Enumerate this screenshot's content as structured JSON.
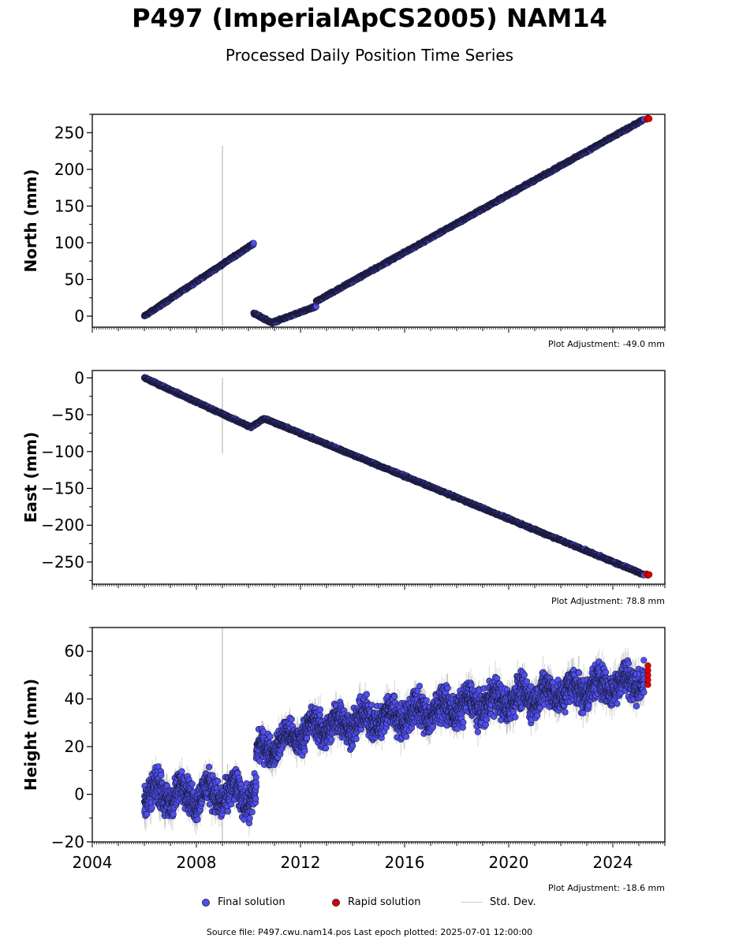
{
  "title": "P497 (ImperialApCS2005) NAM14",
  "subtitle": "Processed Daily Position Time Series",
  "chart_data": [
    {
      "type": "scatter",
      "ylabel": "North (mm)",
      "ylim": [
        -15,
        275
      ],
      "yticks": [
        0,
        50,
        100,
        150,
        200,
        250
      ],
      "xlim": [
        2004,
        2026
      ],
      "adjustment": "Plot Adjustment: -49.0 mm",
      "series": [
        {
          "role": "final",
          "segments": [
            {
              "x0": 2006.0,
              "x1": 2010.2,
              "y0": 0,
              "y1": 99
            },
            {
              "x0": 2010.2,
              "x1": 2010.9,
              "y0": 4,
              "y1": -9
            },
            {
              "x0": 2010.9,
              "x1": 2012.6,
              "y0": -9,
              "y1": 13
            },
            {
              "x0": 2012.6,
              "x1": 2025.2,
              "y0": 20,
              "y1": 268
            }
          ]
        },
        {
          "role": "rapid",
          "points": [
            [
              2025.3,
              268
            ],
            [
              2025.35,
              270
            ],
            [
              2025.4,
              269
            ]
          ]
        }
      ],
      "stddev_outlier": {
        "x": 2009.0,
        "y_low": -13,
        "y_high": 232
      }
    },
    {
      "type": "scatter",
      "ylabel": "East (mm)",
      "ylim": [
        -280,
        10
      ],
      "yticks": [
        0,
        -50,
        -100,
        -150,
        -200,
        -250
      ],
      "xlim": [
        2004,
        2026
      ],
      "adjustment": "Plot Adjustment: 78.8 mm",
      "series": [
        {
          "role": "final",
          "segments": [
            {
              "x0": 2006.0,
              "x1": 2010.1,
              "y0": 0,
              "y1": -67
            },
            {
              "x0": 2010.1,
              "x1": 2010.6,
              "y0": -67,
              "y1": -55
            },
            {
              "x0": 2010.6,
              "x1": 2025.2,
              "y0": -55,
              "y1": -267
            }
          ]
        },
        {
          "role": "rapid",
          "points": [
            [
              2025.3,
              -266
            ],
            [
              2025.35,
              -268
            ],
            [
              2025.4,
              -267
            ]
          ]
        }
      ],
      "stddev_outlier": {
        "x": 2009.0,
        "y_low": -103,
        "y_high": 0
      }
    },
    {
      "type": "scatter",
      "ylabel": "Height (mm)",
      "ylim": [
        -20,
        70
      ],
      "yticks": [
        -20,
        0,
        20,
        40,
        60
      ],
      "xlim": [
        2004,
        2026
      ],
      "xticks": [
        2004,
        2008,
        2012,
        2016,
        2020,
        2024
      ],
      "adjustment": "Plot Adjustment: -18.6 mm",
      "series": [
        {
          "role": "final",
          "segments": [
            {
              "x0": 2006.0,
              "x1": 2010.3,
              "y0": 0,
              "y1": 0,
              "scatter": 6,
              "seasonal": 4
            },
            {
              "x0": 2010.3,
              "x1": 2012.5,
              "y0": 17,
              "y1": 28,
              "scatter": 5,
              "seasonal": 3
            },
            {
              "x0": 2012.5,
              "x1": 2025.2,
              "y0": 28,
              "y1": 48,
              "scatter": 6,
              "seasonal": 3
            }
          ]
        },
        {
          "role": "rapid",
          "points": [
            [
              2025.35,
              46
            ],
            [
              2025.35,
              48
            ],
            [
              2025.35,
              50
            ],
            [
              2025.35,
              52
            ],
            [
              2025.35,
              54
            ]
          ]
        }
      ],
      "stddev_outlier": {
        "x": 2009.0,
        "y_low": -20,
        "y_high": 70
      }
    }
  ],
  "legend": {
    "final_label": "Final solution",
    "rapid_label": "Rapid solution",
    "std_label": "Std. Dev."
  },
  "colors": {
    "final_fill": "#4f4ff0",
    "final_edge": "#1a1a3a",
    "rapid_fill": "#e00000",
    "stddev": "#c8c8c8"
  },
  "footer": {
    "text": "Source file: P497.cwu.nam14.pos  Last epoch plotted: 2025-07-01 12:00:00"
  }
}
